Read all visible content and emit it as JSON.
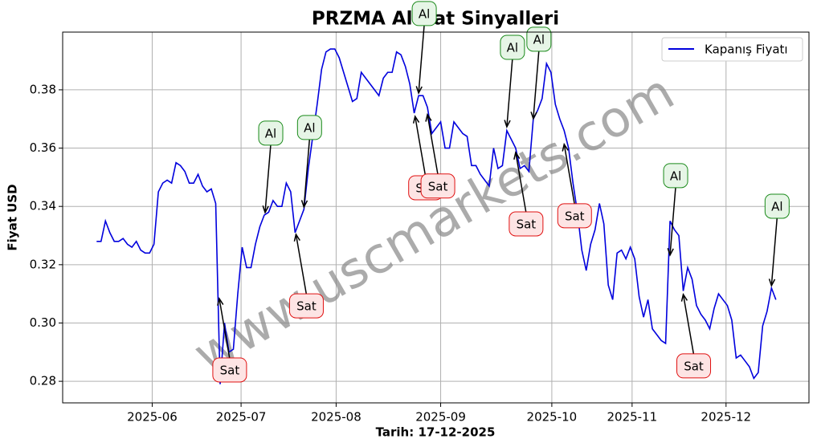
{
  "chart_data": {
    "type": "line",
    "title": "PRZMA Al-Sat Sinyalleri",
    "xlabel": "Tarih: 17-12-2025",
    "ylabel": "Fiyat USD",
    "watermark": "www.uscmarkets.com",
    "legend": "upper right",
    "grid": true,
    "series": [
      {
        "name": "Kapanış Fiyatı",
        "color": "#0000dd",
        "values": [
          0.328,
          0.328,
          0.335,
          0.331,
          0.328,
          0.328,
          0.329,
          0.327,
          0.326,
          0.328,
          0.325,
          0.324,
          0.324,
          0.327,
          0.345,
          0.348,
          0.349,
          0.348,
          0.355,
          0.354,
          0.352,
          0.348,
          0.348,
          0.351,
          0.347,
          0.345,
          0.346,
          0.341,
          0.279,
          0.3,
          0.29,
          0.291,
          0.31,
          0.326,
          0.319,
          0.319,
          0.327,
          0.333,
          0.337,
          0.338,
          0.342,
          0.34,
          0.34,
          0.348,
          0.345,
          0.331,
          0.335,
          0.339,
          0.353,
          0.364,
          0.375,
          0.387,
          0.393,
          0.394,
          0.394,
          0.391,
          0.386,
          0.381,
          0.376,
          0.377,
          0.386,
          0.384,
          0.382,
          0.38,
          0.378,
          0.384,
          0.386,
          0.386,
          0.393,
          0.392,
          0.388,
          0.382,
          0.372,
          0.378,
          0.378,
          0.374,
          0.365,
          0.367,
          0.369,
          0.36,
          0.36,
          0.369,
          0.367,
          0.365,
          0.364,
          0.354,
          0.354,
          0.351,
          0.349,
          0.347,
          0.36,
          0.353,
          0.354,
          0.366,
          0.363,
          0.36,
          0.353,
          0.354,
          0.352,
          0.37,
          0.373,
          0.377,
          0.389,
          0.386,
          0.375,
          0.37,
          0.366,
          0.36,
          0.348,
          0.338,
          0.325,
          0.318,
          0.327,
          0.332,
          0.341,
          0.334,
          0.313,
          0.308,
          0.324,
          0.325,
          0.322,
          0.326,
          0.322,
          0.309,
          0.302,
          0.308,
          0.298,
          0.296,
          0.294,
          0.293,
          0.335,
          0.332,
          0.33,
          0.311,
          0.319,
          0.315,
          0.306,
          0.303,
          0.301,
          0.298,
          0.305,
          0.31,
          0.308,
          0.306,
          0.301,
          0.288,
          0.289,
          0.287,
          0.285,
          0.281,
          0.283,
          0.299,
          0.304,
          0.312,
          0.308
        ]
      }
    ],
    "xlim": [
      -7.7,
      161.5
    ],
    "xticks": [
      {
        "value": 12.6,
        "label": "2025-06"
      },
      {
        "value": 32.75,
        "label": "2025-07"
      },
      {
        "value": 54.3,
        "label": "2025-08"
      },
      {
        "value": 78,
        "label": "2025-09"
      },
      {
        "value": 103.2,
        "label": "2025-10"
      },
      {
        "value": 121.4,
        "label": "2025-11"
      },
      {
        "value": 142.7,
        "label": "2025-12"
      }
    ],
    "ylim": [
      0.2726,
      0.3998
    ],
    "yticks": [
      {
        "value": 0.28,
        "label": "0.28"
      },
      {
        "value": 0.3,
        "label": "0.30"
      },
      {
        "value": 0.32,
        "label": "0.32"
      },
      {
        "value": 0.34,
        "label": "0.34"
      },
      {
        "value": 0.36,
        "label": "0.36"
      },
      {
        "value": 0.38,
        "label": "0.38"
      }
    ],
    "annotations": [
      {
        "text": "Al",
        "x": 38.2,
        "y": 0.3379
      },
      {
        "text": "Al",
        "x": 47,
        "y": 0.3398
      },
      {
        "text": "Al",
        "x": 73,
        "y": 0.3789
      },
      {
        "text": "Al",
        "x": 93,
        "y": 0.3673
      },
      {
        "text": "Al",
        "x": 99,
        "y": 0.3701
      },
      {
        "text": "Al",
        "x": 130,
        "y": 0.3233
      },
      {
        "text": "Al",
        "x": 153,
        "y": 0.3128
      },
      {
        "text": "Sat",
        "x": 27.8,
        "y": 0.3084
      },
      {
        "text": "Sat",
        "x": 45.2,
        "y": 0.3304
      },
      {
        "text": "Sat",
        "x": 72.2,
        "y": 0.3709
      },
      {
        "text": "Sat",
        "x": 75,
        "y": 0.3715
      },
      {
        "text": "Sat",
        "x": 95,
        "y": 0.3585
      },
      {
        "text": "Sat",
        "x": 106,
        "y": 0.3613
      },
      {
        "text": "Sat",
        "x": 133,
        "y": 0.3098
      }
    ]
  }
}
